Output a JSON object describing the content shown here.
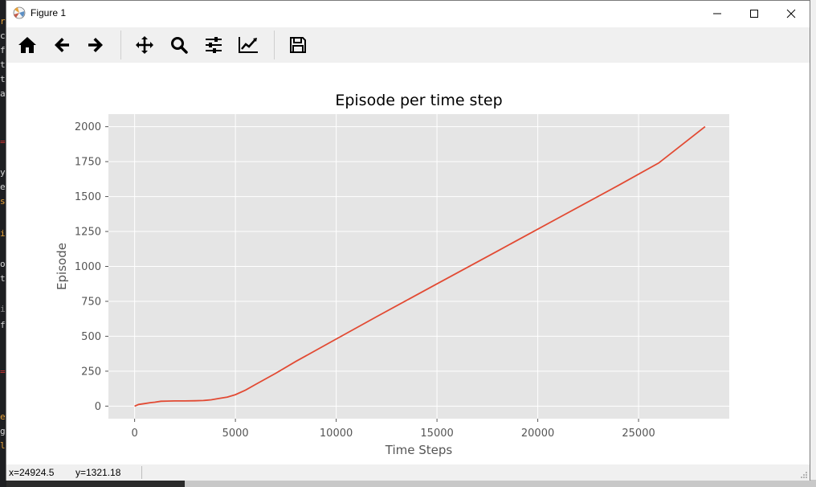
{
  "window": {
    "title": "Figure 1"
  },
  "toolbar": {
    "buttons": [
      "home-icon",
      "back-icon",
      "forward-icon",
      "pan-icon",
      "zoom-icon",
      "configure-subplots-icon",
      "edit-axis-icon",
      "save-icon"
    ]
  },
  "status": {
    "x": "x=24924.5",
    "y": "y=1321.18"
  },
  "background_editor": {
    "left_chars": [
      "r",
      "c",
      "f",
      "t",
      "t",
      "a",
      "=",
      "y",
      "e",
      "s",
      "i",
      "o",
      "t",
      "i",
      "f",
      "=",
      "e",
      "g",
      "l"
    ]
  },
  "chart_data": {
    "type": "line",
    "title": "Episode per time step",
    "xlabel": "Time Steps",
    "ylabel": "Episode",
    "xlim": [
      -1300,
      29500
    ],
    "ylim": [
      -90,
      2090
    ],
    "xticks": [
      0,
      5000,
      10000,
      15000,
      20000,
      25000
    ],
    "yticks": [
      0,
      250,
      500,
      750,
      1000,
      1250,
      1500,
      1750,
      2000
    ],
    "grid": true,
    "line_color": "#e24a33",
    "background": "#e5e5e5",
    "series": [
      {
        "x": [
          0,
          200,
          500,
          800,
          1000,
          1300,
          1600,
          2000,
          2500,
          3000,
          3400,
          3800,
          4200,
          4600,
          5000,
          5500,
          6000,
          7000,
          8000,
          10000,
          12000,
          15000,
          18000,
          21000,
          24000,
          26000,
          28300
        ],
        "y": [
          0,
          12,
          18,
          25,
          28,
          35,
          36,
          37,
          37,
          38,
          40,
          45,
          55,
          65,
          82,
          115,
          155,
          235,
          320,
          480,
          640,
          875,
          1110,
          1345,
          1580,
          1740,
          2000
        ]
      }
    ]
  }
}
